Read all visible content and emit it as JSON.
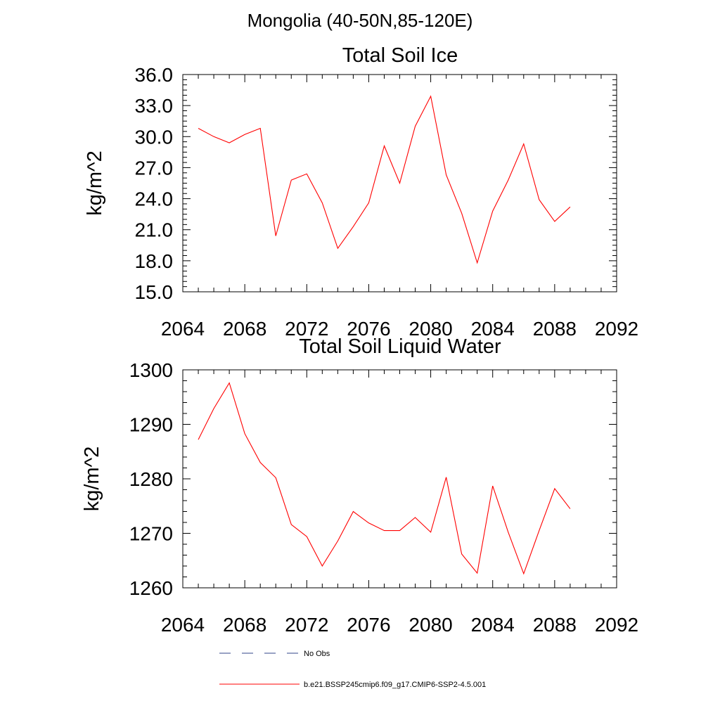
{
  "page_title": "Mongolia (40-50N,85-120E)",
  "chart_data": [
    {
      "type": "line",
      "title": "Total Soil Ice",
      "xlabel": "",
      "ylabel": "kg/m^2",
      "xlim": [
        2064,
        2092
      ],
      "ylim": [
        15.0,
        36.0
      ],
      "xticks": [
        "2064",
        "2068",
        "2072",
        "2076",
        "2080",
        "2084",
        "2088",
        "2092"
      ],
      "yticks": [
        "15.0",
        "18.0",
        "21.0",
        "24.0",
        "27.0",
        "30.0",
        "33.0",
        "36.0"
      ],
      "x": [
        2065,
        2066,
        2067,
        2068,
        2069,
        2070,
        2071,
        2072,
        2073,
        2074,
        2075,
        2076,
        2077,
        2078,
        2079,
        2080,
        2081,
        2082,
        2083,
        2084,
        2085,
        2086,
        2087,
        2088,
        2089
      ],
      "series": [
        {
          "name": "b.e21.BSSP245cmip6.f09_g17.CMIP6-SSP2-4.5.001",
          "color": "#ff0000",
          "values": [
            30.8,
            30.0,
            29.4,
            30.2,
            30.8,
            20.4,
            25.8,
            26.4,
            23.6,
            19.2,
            21.3,
            23.6,
            29.1,
            25.5,
            31.0,
            33.9,
            26.3,
            22.6,
            17.8,
            22.8,
            25.8,
            29.3,
            23.9,
            21.8,
            23.2
          ]
        }
      ]
    },
    {
      "type": "line",
      "title": "Total Soil Liquid Water",
      "xlabel": "",
      "ylabel": "kg/m^2",
      "xlim": [
        2064,
        2092
      ],
      "ylim": [
        1260,
        1300
      ],
      "xticks": [
        "2064",
        "2068",
        "2072",
        "2076",
        "2080",
        "2084",
        "2088",
        "2092"
      ],
      "yticks": [
        "1260",
        "1270",
        "1280",
        "1290",
        "1300"
      ],
      "x": [
        2065,
        2066,
        2067,
        2068,
        2069,
        2070,
        2071,
        2072,
        2073,
        2074,
        2075,
        2076,
        2077,
        2078,
        2079,
        2080,
        2081,
        2082,
        2083,
        2084,
        2085,
        2086,
        2087,
        2088,
        2089
      ],
      "series": [
        {
          "name": "b.e21.BSSP245cmip6.f09_g17.CMIP6-SSP2-4.5.001",
          "color": "#ff0000",
          "values": [
            1287.2,
            1292.9,
            1297.6,
            1288.3,
            1283.0,
            1280.2,
            1271.6,
            1269.4,
            1264.0,
            1268.6,
            1274.0,
            1271.9,
            1270.5,
            1270.5,
            1272.9,
            1270.2,
            1280.3,
            1266.2,
            1262.7,
            1278.7,
            1270.2,
            1262.6,
            1270.5,
            1278.2,
            1274.5
          ]
        }
      ]
    }
  ],
  "legend": [
    {
      "label": "No Obs",
      "style": "dashed",
      "color": "#334488"
    },
    {
      "label": "b.e21.BSSP245cmip6.f09_g17.CMIP6-SSP2-4.5.001",
      "style": "solid",
      "color": "#ff0000"
    }
  ]
}
